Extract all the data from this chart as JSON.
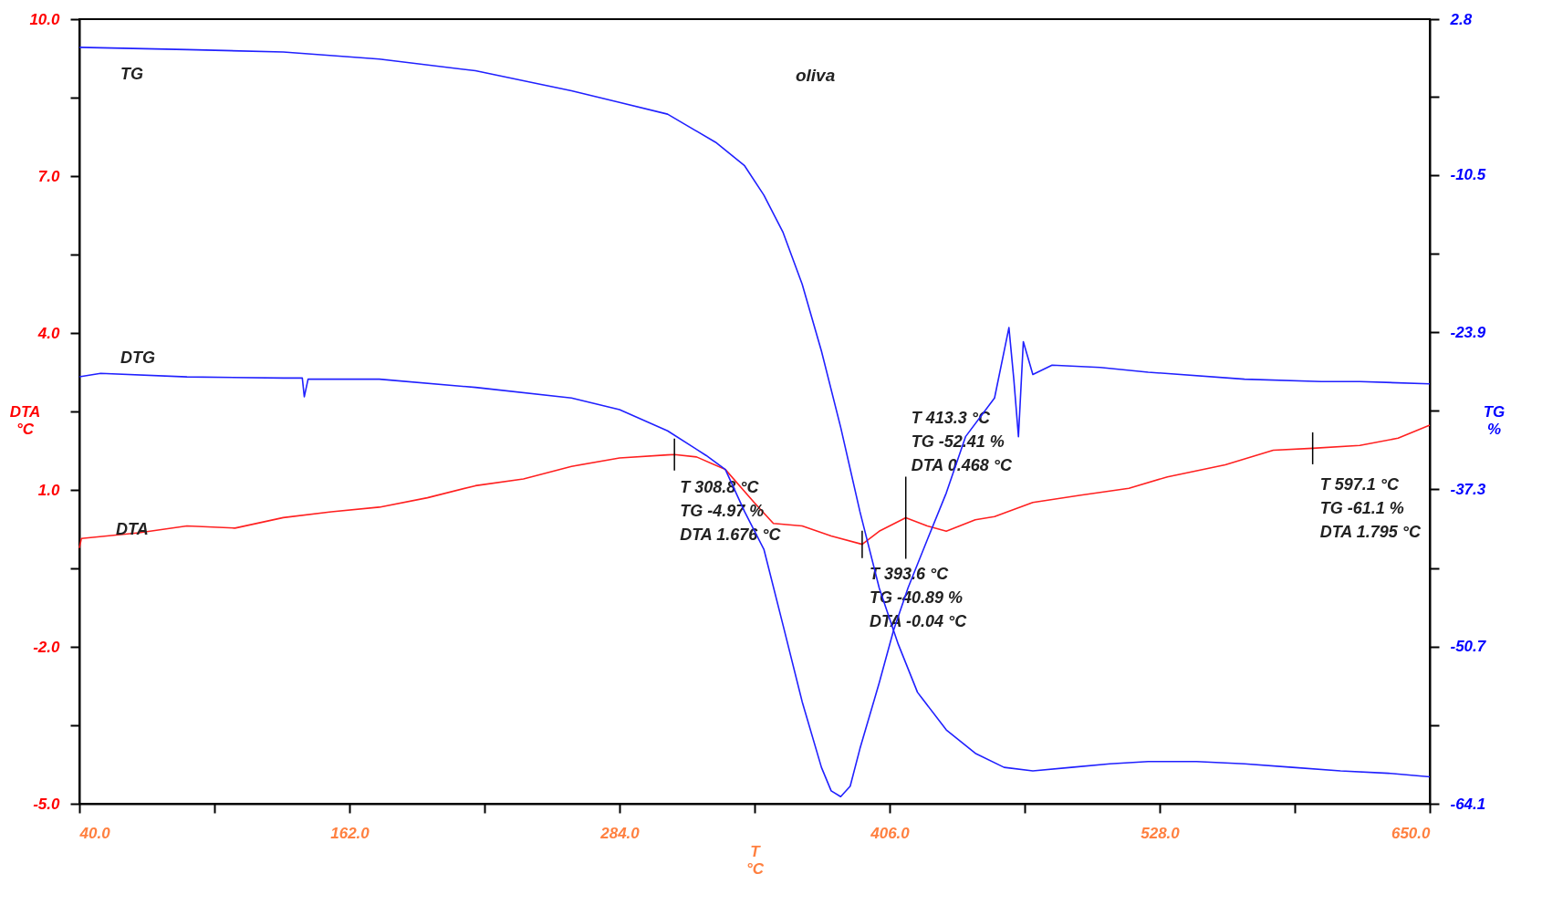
{
  "chart_data": {
    "type": "line",
    "title": "oliva",
    "xlabel": "T\n°C",
    "ylabel": "DTA\n°C",
    "y2label": "TG\n%",
    "xlim": [
      40,
      650
    ],
    "xticks": [
      {
        "value": 40,
        "label": "40.0"
      },
      {
        "value": 101,
        "label": null
      },
      {
        "value": 162,
        "label": "162.0"
      },
      {
        "value": 223,
        "label": null
      },
      {
        "value": 284,
        "label": "284.0"
      },
      {
        "value": 345,
        "label": null
      },
      {
        "value": 406,
        "label": "406.0"
      },
      {
        "value": 467,
        "label": null
      },
      {
        "value": 528,
        "label": "528.0"
      },
      {
        "value": 589,
        "label": null
      },
      {
        "value": 650,
        "label": "650.0"
      }
    ],
    "ylim": [
      -5,
      10
    ],
    "yticks": [
      {
        "value": -5,
        "label": "-5.0"
      },
      {
        "value": -3.5,
        "label": null
      },
      {
        "value": -2,
        "label": "-2.0"
      },
      {
        "value": -0.5,
        "label": null
      },
      {
        "value": 1,
        "label": "1.0"
      },
      {
        "value": 2.5,
        "label": null
      },
      {
        "value": 4,
        "label": "4.0"
      },
      {
        "value": 5.5,
        "label": null
      },
      {
        "value": 7,
        "label": "7.0"
      },
      {
        "value": 8.5,
        "label": null
      },
      {
        "value": 10,
        "label": "10.0"
      }
    ],
    "y2lim": [
      -64.1,
      2.8
    ],
    "y2ticks": [
      {
        "value": -64.1,
        "label": "-64.1"
      },
      {
        "value": -57.4,
        "label": null
      },
      {
        "value": -50.7,
        "label": "-50.7"
      },
      {
        "value": -44,
        "label": null
      },
      {
        "value": -37.3,
        "label": "-37.3"
      },
      {
        "value": -30.6,
        "label": null
      },
      {
        "value": -23.9,
        "label": "-23.9"
      },
      {
        "value": -17.2,
        "label": null
      },
      {
        "value": -10.5,
        "label": "-10.5"
      },
      {
        "value": -3.85,
        "label": null
      },
      {
        "value": 2.8,
        "label": "2.8"
      }
    ],
    "grid": false,
    "legend": false,
    "marker": "none",
    "series": [
      {
        "name": "TG",
        "color": "#2020ff",
        "axis": "y2",
        "x": [
          40,
          88.6,
          132.1,
          175.5,
          218.9,
          262.3,
          284.0,
          305.7,
          327.4,
          340.5,
          349.2,
          357.9,
          366.5,
          375.2,
          383.9,
          392.6,
          401.3,
          409.9,
          418.6,
          431.6,
          444.7,
          457.7,
          470.7,
          488.1,
          505.5,
          522.8,
          544.6,
          566.3,
          588.0,
          609.7,
          631.4,
          650
        ],
        "values": [
          0.4,
          0.2,
          0.0,
          -0.6,
          -1.6,
          -3.3,
          -4.3,
          -5.3,
          -7.7,
          -9.7,
          -12.2,
          -15.4,
          -19.8,
          -25.5,
          -32.0,
          -39.2,
          -45.7,
          -50.5,
          -54.6,
          -57.8,
          -59.8,
          -61.0,
          -61.3,
          -61.0,
          -60.7,
          -60.5,
          -60.5,
          -60.7,
          -61.0,
          -61.3,
          -61.5,
          -61.8
        ]
      },
      {
        "name": "DTG",
        "color": "#2020ff",
        "axis": "y2",
        "x": [
          40,
          49.6,
          88.6,
          132.1,
          140.7,
          141.6,
          143.3,
          175.5,
          218.9,
          262.3,
          284.0,
          305.7,
          323.1,
          331.8,
          340.5,
          349.2,
          357.9,
          366.5,
          375.2,
          379.6,
          383.9,
          388.2,
          392.6,
          401.3,
          407.8,
          414.3,
          423.0,
          431.6,
          440.3,
          453.4,
          459.9,
          462.1,
          464.2,
          466.4,
          470.7,
          479.4,
          501.1,
          522.8,
          566.3,
          601.0,
          618.4,
          650
        ],
        "values": [
          -27.7,
          -27.4,
          -27.7,
          -27.8,
          -27.8,
          -29.4,
          -27.9,
          -27.9,
          -28.6,
          -29.5,
          -30.5,
          -32.3,
          -34.4,
          -35.6,
          -39.2,
          -42.4,
          -48.9,
          -55.4,
          -61.0,
          -63.0,
          -63.5,
          -62.6,
          -59.4,
          -53.8,
          -49.3,
          -45.7,
          -41.6,
          -37.6,
          -32.8,
          -29.5,
          -23.5,
          -27.9,
          -32.8,
          -24.7,
          -27.5,
          -26.7,
          -26.9,
          -27.3,
          -27.9,
          -28.1,
          -28.1,
          -28.3
        ]
      },
      {
        "name": "DTA",
        "color": "#ff2020",
        "x": [
          40,
          40.9,
          66.9,
          88.6,
          110.3,
          132.1,
          153.8,
          175.5,
          197.2,
          218.9,
          240.6,
          262.3,
          284.0,
          305.7,
          308.8,
          318.8,
          331.8,
          344.8,
          353.5,
          366.5,
          379.6,
          393.6,
          401.3,
          413.3,
          423.0,
          431.6,
          444.7,
          453.4,
          470.7,
          492.4,
          514.1,
          531.5,
          557.6,
          579.3,
          597.1,
          618.4,
          635.7,
          650
        ],
        "values": [
          -0.11,
          0.07,
          0.18,
          0.31,
          0.27,
          0.47,
          0.58,
          0.67,
          0.85,
          1.08,
          1.21,
          1.45,
          1.61,
          1.67,
          1.676,
          1.63,
          1.39,
          0.76,
          0.36,
          0.31,
          0.12,
          -0.04,
          0.21,
          0.468,
          0.31,
          0.21,
          0.43,
          0.49,
          0.76,
          0.9,
          1.03,
          1.25,
          1.48,
          1.76,
          1.795,
          1.85,
          1.99,
          2.24
        ]
      }
    ],
    "annotations": [
      {
        "text": "T 308.8 °C\nTG -4.97 %\nDTA 1.676 °C",
        "x": 308.8,
        "y": 1.676
      },
      {
        "text": "T 393.6 °C\nTG -40.89 %\nDTA -0.04 °C",
        "x": 393.6,
        "y": -0.04
      },
      {
        "text": "T 413.3 °C\nTG -52.41 %\nDTA 0.468 °C",
        "x": 413.3,
        "y": 0.468
      },
      {
        "text": "T 597.1 °C\nTG -61.1 %\nDTA 1.795 °C",
        "x": 597.1,
        "y": 1.795
      }
    ]
  }
}
